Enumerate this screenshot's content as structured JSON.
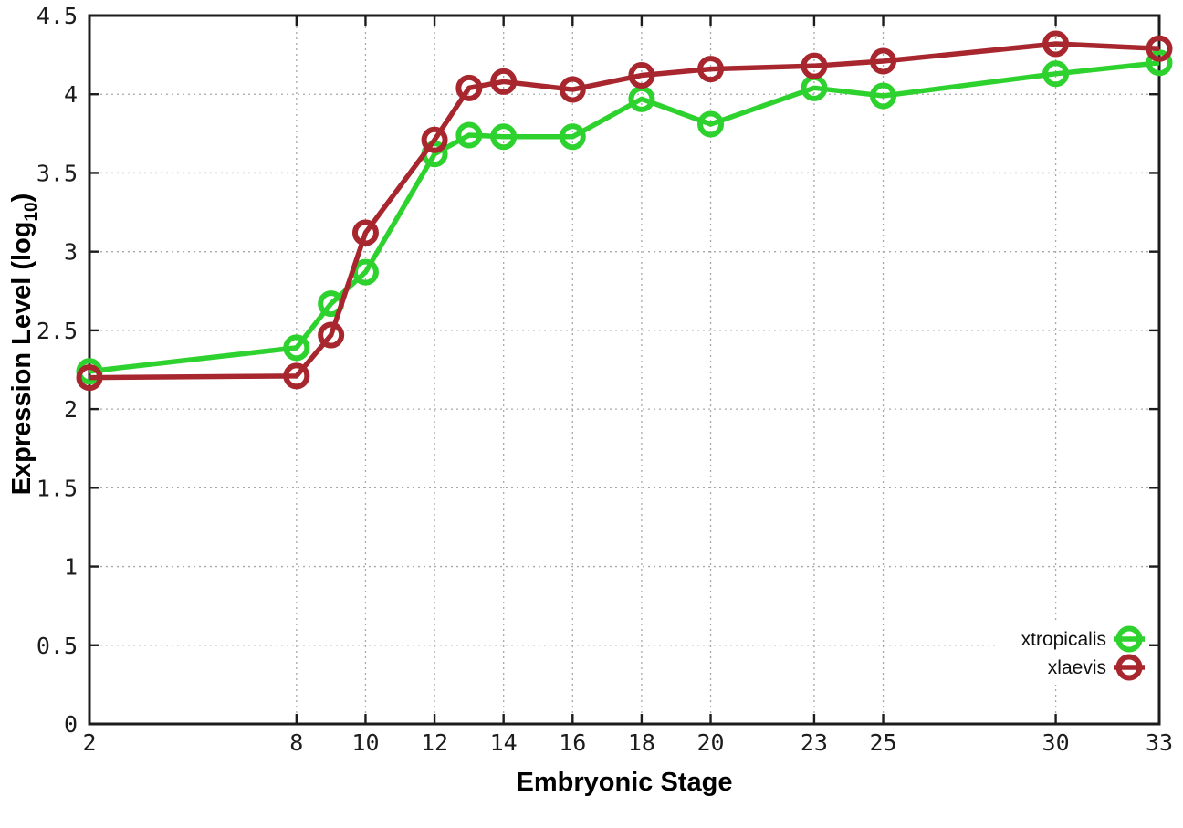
{
  "page": {
    "background": "#ffffff"
  },
  "chart_data": {
    "type": "line",
    "title": "",
    "xlabel": "Embryonic Stage",
    "ylabel": "Expression Level (log10)",
    "ylabel_parts": {
      "main": "Expression Level (log",
      "sub": "10",
      "close": ")"
    },
    "x": [
      2,
      8,
      9,
      10,
      12,
      13,
      14,
      16,
      18,
      20,
      23,
      25,
      30,
      33
    ],
    "series": [
      {
        "name": "xtropicalis",
        "color": "#2ed22e",
        "values": [
          2.24,
          2.39,
          2.67,
          2.87,
          3.62,
          3.74,
          3.73,
          3.73,
          3.97,
          3.81,
          4.04,
          3.99,
          4.13,
          4.2
        ]
      },
      {
        "name": "xlaevis",
        "color": "#a8262e",
        "values": [
          2.2,
          2.21,
          2.47,
          3.12,
          3.71,
          4.04,
          4.08,
          4.03,
          4.12,
          4.16,
          4.18,
          4.21,
          4.32,
          4.29
        ]
      }
    ],
    "xlim": [
      2,
      33
    ],
    "ylim": [
      0,
      4.5
    ],
    "x_ticks": [
      2,
      8,
      10,
      12,
      14,
      16,
      18,
      20,
      23,
      25,
      30,
      33
    ],
    "x_tick_labels": [
      "2",
      "8",
      "10",
      "12",
      "14",
      "16",
      "18",
      "20",
      "23",
      "25",
      "30",
      "33"
    ],
    "y_ticks": [
      0,
      0.5,
      1,
      1.5,
      2,
      2.5,
      3,
      3.5,
      4,
      4.5
    ],
    "y_tick_labels": [
      "0",
      "0.5",
      "1",
      "1.5",
      "2",
      "2.5",
      "3",
      "3.5",
      "4",
      "4.5"
    ],
    "grid": true,
    "marker": "open-circle",
    "legend": {
      "position": "bottom-right",
      "entries": [
        "xtropicalis",
        "xlaevis"
      ]
    },
    "styles": {
      "grid_color": "#a8a8a8",
      "axis_color": "#1c1c1c",
      "background": "#ffffff"
    }
  }
}
